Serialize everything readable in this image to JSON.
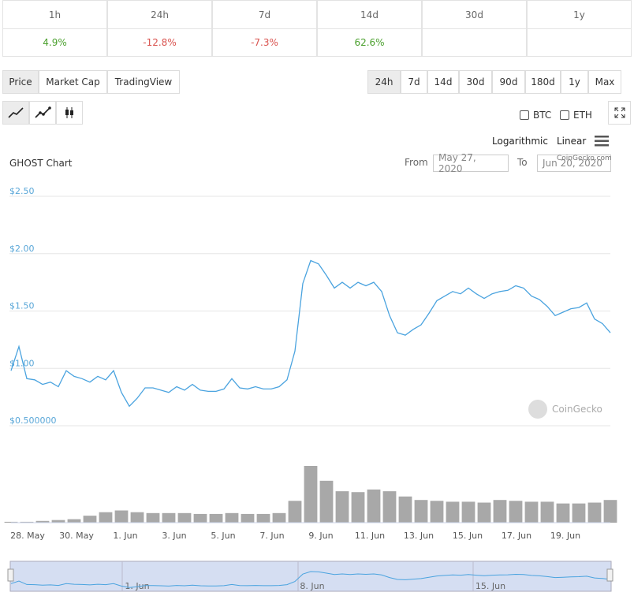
{
  "performance": {
    "periods": [
      "1h",
      "24h",
      "7d",
      "14d",
      "30d",
      "1y"
    ],
    "changes": [
      "4.9%",
      "-12.8%",
      "-7.3%",
      "62.6%"
    ]
  },
  "tabs": [
    "Price",
    "Market Cap",
    "TradingView"
  ],
  "ranges": [
    "24h",
    "7d",
    "14d",
    "30d",
    "90d",
    "180d",
    "1y",
    "Max"
  ],
  "compare": [
    "BTC",
    "ETH"
  ],
  "scale_options": [
    "Logarithmic",
    "Linear"
  ],
  "date_range": {
    "from_label": "From",
    "from": "May 27, 2020",
    "to_label": "To",
    "to": "Jun 20, 2020"
  },
  "chart_data": {
    "type": "line",
    "title": "GHOST Chart",
    "color": "#4aa3df",
    "values": [
      0.98,
      1.19,
      0.91,
      0.9,
      0.86,
      0.88,
      0.84,
      0.98,
      0.93,
      0.91,
      0.88,
      0.93,
      0.9,
      0.98,
      0.79,
      0.67,
      0.74,
      0.83,
      0.83,
      0.81,
      0.79,
      0.84,
      0.81,
      0.86,
      0.81,
      0.8,
      0.8,
      0.82,
      0.91,
      0.83,
      0.82,
      0.84,
      0.82,
      0.82,
      0.84,
      0.9,
      1.15,
      1.74,
      1.94,
      1.91,
      1.81,
      1.7,
      1.75,
      1.7,
      1.75,
      1.72,
      1.75,
      1.67,
      1.46,
      1.31,
      1.29,
      1.34,
      1.38,
      1.48,
      1.59,
      1.63,
      1.67,
      1.65,
      1.7,
      1.65,
      1.61,
      1.65,
      1.67,
      1.68,
      1.72,
      1.7,
      1.63,
      1.6,
      1.54,
      1.46,
      1.49,
      1.52,
      1.53,
      1.57,
      1.43,
      1.39,
      1.31
    ],
    "ylim": [
      0.5,
      2.5
    ],
    "yticks": [
      {
        "value": 0.5,
        "label": "$0.500000"
      },
      {
        "value": 1,
        "label": "$1.00"
      },
      {
        "value": 1.5,
        "label": "$1.50"
      },
      {
        "value": 2,
        "label": "$2.00"
      },
      {
        "value": 2.5,
        "label": "$2.50"
      }
    ],
    "grid": true,
    "x_labels": [
      "28. May",
      "30. May",
      "1. Jun",
      "3. Jun",
      "5. Jun",
      "7. Jun",
      "9. Jun",
      "11. Jun",
      "13. Jun",
      "15. Jun",
      "17. Jun",
      "19. Jun"
    ],
    "volume": {
      "color": "#a8a8a8",
      "values": [
        1,
        1,
        2,
        3,
        4,
        8,
        12,
        14,
        12,
        11,
        11,
        11,
        10,
        10,
        11,
        10,
        10,
        11,
        25,
        65,
        48,
        36,
        35,
        38,
        36,
        30,
        26,
        25,
        24,
        24,
        23,
        26,
        25,
        24,
        24,
        22,
        22,
        23,
        26
      ]
    },
    "navigator_labels": [
      "1. Jun",
      "8. Jun",
      "15. Jun"
    ],
    "watermark": "CoinGecko",
    "credit": "CoinGecko.com"
  }
}
